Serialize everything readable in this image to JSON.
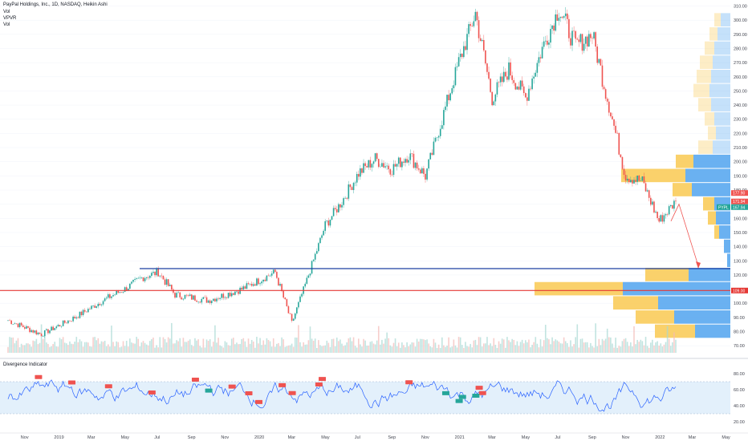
{
  "header": {
    "symbol": "PayPal Holdings, Inc., 1D, NASDAQ, Heikin Ashi",
    "line2": "Vol",
    "line3": "VPVR",
    "line4": "Vol"
  },
  "indicator": {
    "title": "Divergence Indicator",
    "ticks": [
      "80.00",
      "60.00",
      "40.00",
      "20.00"
    ],
    "band": [
      30,
      70
    ],
    "range": [
      10,
      90
    ]
  },
  "colors": {
    "up": "#26a69a",
    "down": "#ef5350",
    "rsi_line": "#2962ff",
    "band_fill": "#e3f0fb",
    "vp_up": "#5aa8f0",
    "vp_down": "#f9cc5b",
    "support_line": "#1a3ea0",
    "resistance_line": "#e53935"
  },
  "price_axis": {
    "ticks": [
      "310.00",
      "300.00",
      "290.00",
      "280.00",
      "270.00",
      "260.00",
      "250.00",
      "240.00",
      "230.00",
      "220.00",
      "210.00",
      "200.00",
      "190.00",
      "180.00",
      "160.00",
      "150.00",
      "140.00",
      "130.00",
      "120.00",
      "100.00",
      "90.00",
      "80.00",
      "70.00"
    ],
    "labels": [
      {
        "value": 177.9,
        "text": "177.90",
        "color": "#ef5350"
      },
      {
        "value": 171.94,
        "text": "171.94",
        "color": "#ef5350"
      },
      {
        "value": 167.94,
        "text": "167.94",
        "color": "#26a69a",
        "symbol": "PYPL"
      },
      {
        "value": 109.0,
        "text": "109.00",
        "color": "#e53935"
      }
    ]
  },
  "time_axis": [
    "Nov",
    "2019",
    "Mar",
    "May",
    "Jul",
    "Sep",
    "Nov",
    "2020",
    "Mar",
    "May",
    "Jul",
    "Sep",
    "Nov",
    "2021",
    "Mar",
    "May",
    "Jul",
    "Sep",
    "Nov",
    "2022",
    "Mar",
    "May"
  ],
  "chart_data": {
    "type": "candlestick",
    "price_range": [
      65,
      312
    ],
    "support_level": 124.5,
    "resistance_level": 109,
    "close_series": [
      [
        "2018-10",
        88
      ],
      [
        "2018-12",
        78
      ],
      [
        "2019-01",
        84
      ],
      [
        "2019-02",
        90
      ],
      [
        "2019-04",
        104
      ],
      [
        "2019-05",
        110
      ],
      [
        "2019-06",
        118
      ],
      [
        "2019-07",
        122
      ],
      [
        "2019-08",
        106
      ],
      [
        "2019-09",
        104
      ],
      [
        "2019-10",
        102
      ],
      [
        "2019-11",
        106
      ],
      [
        "2019-12",
        110
      ],
      [
        "2020-01",
        116
      ],
      [
        "2020-02",
        122
      ],
      [
        "2020-03",
        86
      ],
      [
        "2020-04",
        120
      ],
      [
        "2020-05",
        155
      ],
      [
        "2020-06",
        172
      ],
      [
        "2020-07",
        192
      ],
      [
        "2020-08",
        202
      ],
      [
        "2020-09",
        195
      ],
      [
        "2020-10",
        205
      ],
      [
        "2020-11",
        190
      ],
      [
        "2020-12",
        230
      ],
      [
        "2021-01",
        270
      ],
      [
        "2021-02",
        305
      ],
      [
        "2021-03",
        245
      ],
      [
        "2021-04",
        265
      ],
      [
        "2021-05",
        245
      ],
      [
        "2021-06",
        280
      ],
      [
        "2021-07",
        308
      ],
      [
        "2021-08",
        282
      ],
      [
        "2021-09",
        290
      ],
      [
        "2021-10",
        240
      ],
      [
        "2021-11",
        190
      ],
      [
        "2021-12",
        186
      ],
      [
        "2022-01",
        158
      ],
      [
        "2022-02",
        172
      ]
    ],
    "volume_profile": [
      {
        "price": 300,
        "up": 12,
        "down": 8
      },
      {
        "price": 290,
        "up": 16,
        "down": 10
      },
      {
        "price": 280,
        "up": 20,
        "down": 12
      },
      {
        "price": 270,
        "up": 22,
        "down": 16
      },
      {
        "price": 260,
        "up": 24,
        "down": 18
      },
      {
        "price": 250,
        "up": 26,
        "down": 20
      },
      {
        "price": 240,
        "up": 24,
        "down": 16
      },
      {
        "price": 230,
        "up": 20,
        "down": 12
      },
      {
        "price": 220,
        "up": 18,
        "down": 10
      },
      {
        "price": 210,
        "up": 22,
        "down": 18
      },
      {
        "price": 200,
        "up": 46,
        "down": 22
      },
      {
        "price": 190,
        "up": 56,
        "down": 80
      },
      {
        "price": 180,
        "up": 48,
        "down": 24
      },
      {
        "price": 170,
        "up": 20,
        "down": 14
      },
      {
        "price": 160,
        "up": 18,
        "down": 10
      },
      {
        "price": 150,
        "up": 14,
        "down": 6
      },
      {
        "price": 140,
        "up": 8,
        "down": 0
      },
      {
        "price": 130,
        "up": 4,
        "down": 0
      },
      {
        "price": 120,
        "up": 52,
        "down": 54
      },
      {
        "price": 110,
        "up": 134,
        "down": 110
      },
      {
        "price": 100,
        "up": 90,
        "down": 56
      },
      {
        "price": 90,
        "up": 70,
        "down": 48
      },
      {
        "price": 80,
        "up": 44,
        "down": 50
      }
    ],
    "bear_signals": [
      9,
      19,
      30,
      43,
      56,
      67,
      72,
      75,
      82,
      85,
      93,
      94,
      120,
      141,
      142
    ],
    "bull_signals": [
      60,
      131,
      135,
      136,
      140
    ]
  }
}
